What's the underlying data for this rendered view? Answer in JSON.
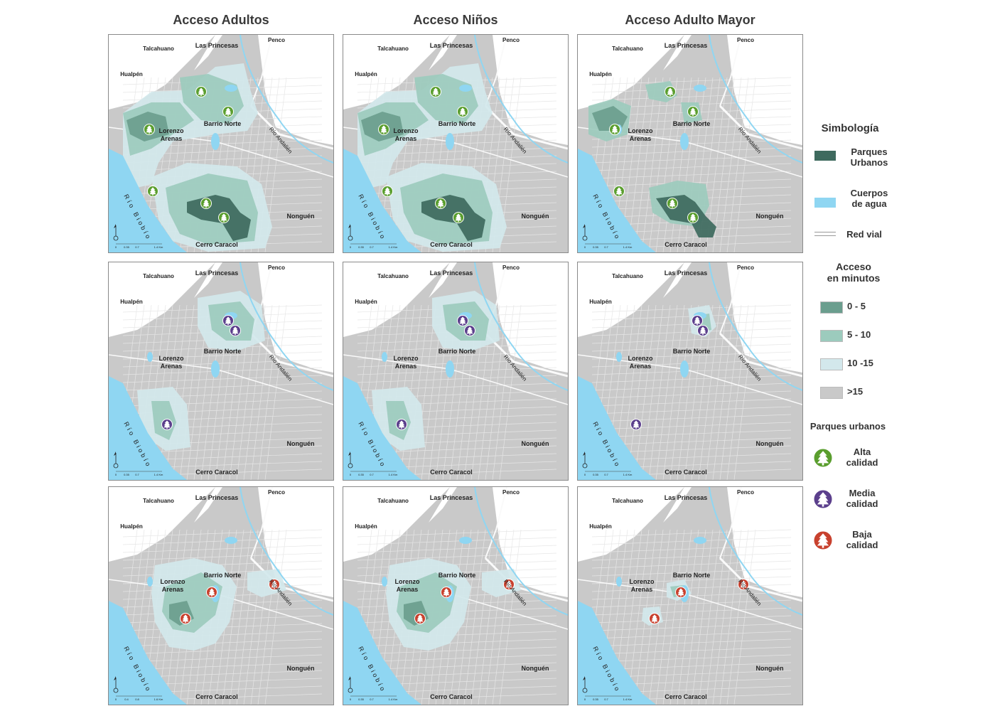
{
  "columns": [
    "Acceso Adultos",
    "Acceso Niños",
    "Acceso Adulto Mayor"
  ],
  "place_labels": {
    "talcahuano": "Talcahuano",
    "las_princesas": "Las Princesas",
    "penco": "Penco",
    "hualpen": "Hualpén",
    "lorenzo_arenas_1": "Lorenzo",
    "lorenzo_arenas_2": "Arenas",
    "barrio_norte": "Barrio Norte",
    "rio_andalien": "Río Andalién",
    "rio_biobio": "Río Biobío",
    "nonguen": "Nonguén",
    "cerro_caracol": "Cerro Caracol"
  },
  "scale_bar": {
    "labels_a": [
      "0",
      "0.35",
      "0.7",
      "1.4 Km"
    ],
    "labels_b": [
      "0",
      "0.4",
      "0.8",
      "1.6 Km"
    ]
  },
  "legend": {
    "title": "Simbología",
    "parques_urbanos": [
      "Parques",
      "Urbanos"
    ],
    "cuerpos_agua": [
      "Cuerpos",
      "de agua"
    ],
    "red_vial": "Red vial",
    "acceso_title": [
      "Acceso",
      "en minutos"
    ],
    "classes": [
      {
        "label": "0 - 5",
        "color": "#6b9e8e"
      },
      {
        "label": "5 - 10",
        "color": "#9ccbbd"
      },
      {
        "label": "10 -15",
        "color": "#d3e8ec"
      },
      {
        "label": ">15",
        "color": "#c9c9c9"
      }
    ],
    "parques_title": "Parques urbanos",
    "quality": [
      {
        "label": [
          "Alta",
          "calidad"
        ],
        "color": "#5a9e2e"
      },
      {
        "label": [
          "Media",
          "calidad"
        ],
        "color": "#5b3f8c"
      },
      {
        "label": [
          "Baja",
          "calidad"
        ],
        "color": "#c8412e"
      }
    ]
  },
  "colors": {
    "map_bg": "#c9c9c9",
    "water": "#8fd6f2",
    "park": "#3e6a5e",
    "road": "#eeeeee",
    "tree_alta": "#5a9e2e",
    "tree_media": "#5b3f8c",
    "tree_baja": "#c8412e"
  }
}
